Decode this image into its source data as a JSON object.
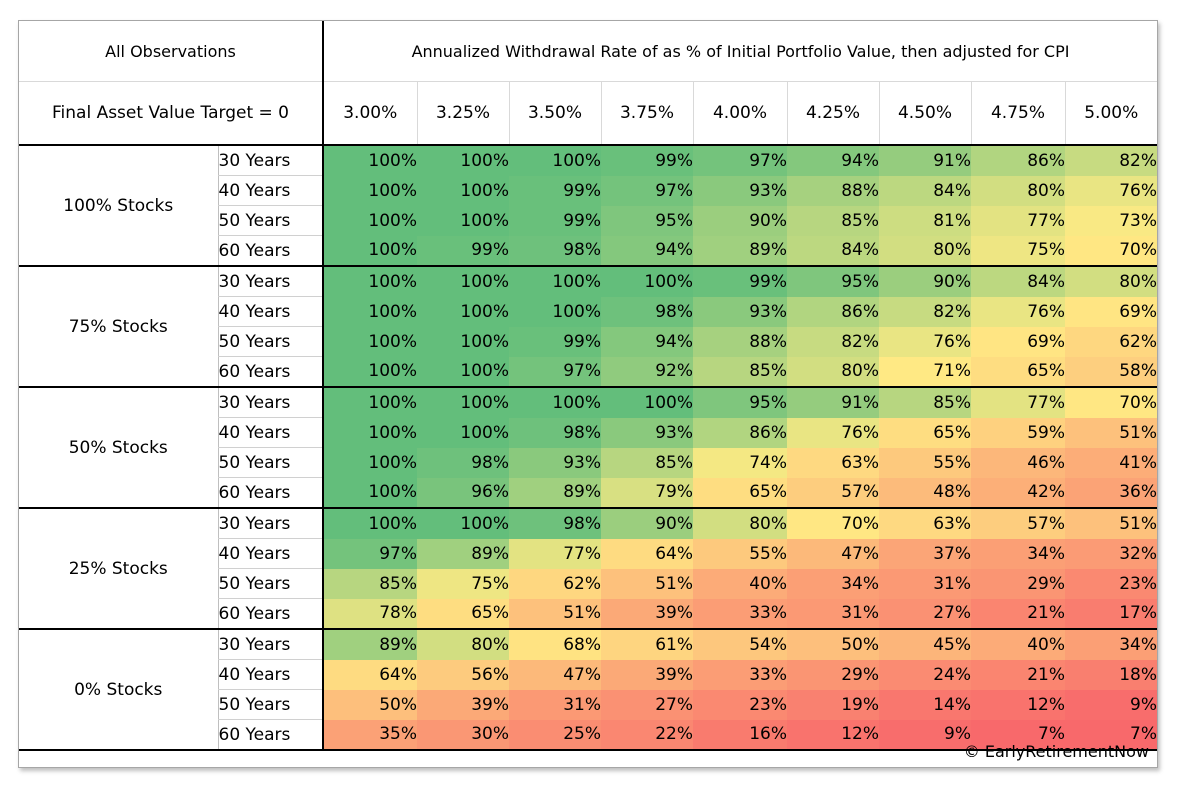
{
  "chart_data": {
    "type": "heatmap",
    "title": "All Observations",
    "column_header": "Annualized Withdrawal Rate of as % of Initial Portfolio Value, then adjusted for CPI",
    "row_header": "Final Asset Value Target = 0",
    "columns": [
      "3.00%",
      "3.25%",
      "3.50%",
      "3.75%",
      "4.00%",
      "4.25%",
      "4.50%",
      "4.75%",
      "5.00%"
    ],
    "horizons": [
      "30 Years",
      "40 Years",
      "50 Years",
      "60 Years"
    ],
    "value_suffix": "%",
    "groups": [
      {
        "label": "100% Stocks",
        "rows": [
          [
            100,
            100,
            100,
            99,
            97,
            94,
            91,
            86,
            82
          ],
          [
            100,
            100,
            99,
            97,
            93,
            88,
            84,
            80,
            76
          ],
          [
            100,
            100,
            99,
            95,
            90,
            85,
            81,
            77,
            73
          ],
          [
            100,
            99,
            98,
            94,
            89,
            84,
            80,
            75,
            70
          ]
        ]
      },
      {
        "label": "75% Stocks",
        "rows": [
          [
            100,
            100,
            100,
            100,
            99,
            95,
            90,
            84,
            80
          ],
          [
            100,
            100,
            100,
            98,
            93,
            86,
            82,
            76,
            69
          ],
          [
            100,
            100,
            99,
            94,
            88,
            82,
            76,
            69,
            62
          ],
          [
            100,
            100,
            97,
            92,
            85,
            80,
            71,
            65,
            58
          ]
        ]
      },
      {
        "label": "50% Stocks",
        "rows": [
          [
            100,
            100,
            100,
            100,
            95,
            91,
            85,
            77,
            70
          ],
          [
            100,
            100,
            98,
            93,
            86,
            76,
            65,
            59,
            51
          ],
          [
            100,
            98,
            93,
            85,
            74,
            63,
            55,
            46,
            41
          ],
          [
            100,
            96,
            89,
            79,
            65,
            57,
            48,
            42,
            36
          ]
        ]
      },
      {
        "label": "25% Stocks",
        "rows": [
          [
            100,
            100,
            98,
            90,
            80,
            70,
            63,
            57,
            51
          ],
          [
            97,
            89,
            77,
            64,
            55,
            47,
            37,
            34,
            32
          ],
          [
            85,
            75,
            62,
            51,
            40,
            34,
            31,
            29,
            23
          ],
          [
            78,
            65,
            51,
            39,
            33,
            31,
            27,
            21,
            17
          ]
        ]
      },
      {
        "label": "0% Stocks",
        "rows": [
          [
            89,
            80,
            68,
            61,
            54,
            50,
            45,
            40,
            34
          ],
          [
            64,
            56,
            47,
            39,
            33,
            29,
            24,
            21,
            18
          ],
          [
            50,
            39,
            31,
            27,
            23,
            19,
            14,
            12,
            9
          ],
          [
            35,
            30,
            25,
            22,
            16,
            12,
            9,
            7,
            7
          ]
        ]
      }
    ],
    "colorscale": {
      "low": "#f8696b",
      "mid": "#ffeb84",
      "high": "#63be7b",
      "min": 7,
      "mid_value": 72,
      "max": 100
    }
  },
  "footer": {
    "copyright": "© EarlyRetirementNow"
  }
}
